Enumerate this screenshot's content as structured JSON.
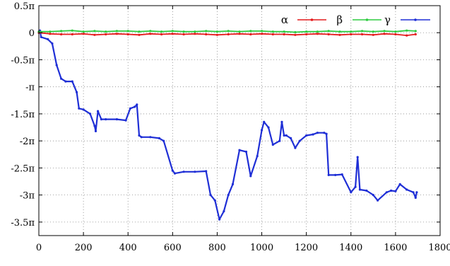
{
  "chart_data": {
    "type": "line",
    "title": "",
    "xlabel": "",
    "ylabel": "",
    "xlim": [
      0,
      1800
    ],
    "ylim": [
      -3.75,
      0.5
    ],
    "grid": true,
    "legend_position": "top-right",
    "x_ticks": [
      {
        "value": 0,
        "label": "0"
      },
      {
        "value": 200,
        "label": "200"
      },
      {
        "value": 400,
        "label": "400"
      },
      {
        "value": 600,
        "label": "600"
      },
      {
        "value": 800,
        "label": "800"
      },
      {
        "value": 1000,
        "label": "1000"
      },
      {
        "value": 1200,
        "label": "1200"
      },
      {
        "value": 1400,
        "label": "1400"
      },
      {
        "value": 1600,
        "label": "1600"
      },
      {
        "value": 1800,
        "label": "1800"
      }
    ],
    "y_ticks": [
      {
        "value": 0.5,
        "label": "0.5π"
      },
      {
        "value": 0,
        "label": "0"
      },
      {
        "value": -0.5,
        "label": "-0.5π"
      },
      {
        "value": -1,
        "label": "-π"
      },
      {
        "value": -1.5,
        "label": "-1.5π"
      },
      {
        "value": -2,
        "label": "-2π"
      },
      {
        "value": -2.5,
        "label": "-2.5π"
      },
      {
        "value": -3,
        "label": "-3π"
      },
      {
        "value": -3.5,
        "label": "-3.5π"
      }
    ],
    "series": [
      {
        "name": "α",
        "color": "#e41a1c",
        "x": [
          0,
          50,
          100,
          150,
          200,
          250,
          300,
          350,
          400,
          450,
          500,
          550,
          600,
          650,
          700,
          750,
          800,
          850,
          900,
          950,
          1000,
          1050,
          1100,
          1150,
          1200,
          1250,
          1300,
          1350,
          1400,
          1450,
          1500,
          1550,
          1600,
          1650,
          1690
        ],
        "y": [
          0,
          -0.02,
          -0.03,
          -0.03,
          -0.02,
          -0.04,
          -0.03,
          -0.02,
          -0.03,
          -0.04,
          -0.02,
          -0.03,
          -0.02,
          -0.03,
          -0.02,
          -0.03,
          -0.04,
          -0.03,
          -0.02,
          -0.03,
          -0.02,
          -0.03,
          -0.03,
          -0.04,
          -0.03,
          -0.02,
          -0.03,
          -0.04,
          -0.03,
          -0.03,
          -0.04,
          -0.02,
          -0.03,
          -0.05,
          -0.03
        ]
      },
      {
        "name": "β",
        "color": "#2ecc40",
        "x": [
          0,
          50,
          100,
          150,
          200,
          250,
          300,
          350,
          400,
          450,
          500,
          550,
          600,
          650,
          700,
          750,
          800,
          850,
          900,
          950,
          1000,
          1050,
          1100,
          1150,
          1200,
          1250,
          1300,
          1350,
          1400,
          1450,
          1500,
          1550,
          1600,
          1650,
          1690
        ],
        "y": [
          0.02,
          0.02,
          0.03,
          0.04,
          0.02,
          0.03,
          0.02,
          0.03,
          0.03,
          0.02,
          0.03,
          0.02,
          0.03,
          0.02,
          0.02,
          0.03,
          0.02,
          0.03,
          0.02,
          0.03,
          0.03,
          0.02,
          0.02,
          0.01,
          0.02,
          0.02,
          0.03,
          0.02,
          0.02,
          0.03,
          0.02,
          0.03,
          0.02,
          0.04,
          0.03
        ]
      },
      {
        "name": "γ",
        "color": "#1f2fd6",
        "x": [
          0,
          5,
          10,
          40,
          60,
          80,
          100,
          120,
          150,
          170,
          180,
          200,
          230,
          250,
          255,
          265,
          280,
          300,
          350,
          390,
          410,
          430,
          440,
          450,
          460,
          500,
          540,
          560,
          600,
          610,
          650,
          700,
          750,
          770,
          790,
          810,
          830,
          850,
          870,
          900,
          930,
          950,
          980,
          1000,
          1010,
          1030,
          1050,
          1080,
          1090,
          1100,
          1110,
          1130,
          1150,
          1170,
          1200,
          1230,
          1250,
          1280,
          1290,
          1300,
          1330,
          1360,
          1400,
          1420,
          1430,
          1440,
          1470,
          1500,
          1520,
          1560,
          1580,
          1600,
          1620,
          1650,
          1680,
          1690,
          1695
        ],
        "y": [
          0,
          0.04,
          -0.08,
          -0.12,
          -0.2,
          -0.6,
          -0.85,
          -0.9,
          -0.9,
          -1.1,
          -1.4,
          -1.42,
          -1.5,
          -1.72,
          -1.82,
          -1.45,
          -1.6,
          -1.6,
          -1.6,
          -1.62,
          -1.4,
          -1.37,
          -1.33,
          -1.9,
          -1.93,
          -1.93,
          -1.95,
          -2.0,
          -2.55,
          -2.6,
          -2.57,
          -2.57,
          -2.56,
          -3.0,
          -3.1,
          -3.45,
          -3.3,
          -3.0,
          -2.8,
          -2.17,
          -2.2,
          -2.65,
          -2.28,
          -1.8,
          -1.65,
          -1.75,
          -2.07,
          -2.0,
          -1.65,
          -1.9,
          -1.9,
          -1.95,
          -2.13,
          -2.0,
          -1.9,
          -1.88,
          -1.85,
          -1.85,
          -1.87,
          -2.63,
          -2.63,
          -2.62,
          -2.95,
          -2.85,
          -2.3,
          -2.9,
          -2.92,
          -3.0,
          -3.1,
          -2.95,
          -2.92,
          -2.93,
          -2.8,
          -2.9,
          -2.95,
          -3.05,
          -2.95
        ]
      }
    ]
  }
}
